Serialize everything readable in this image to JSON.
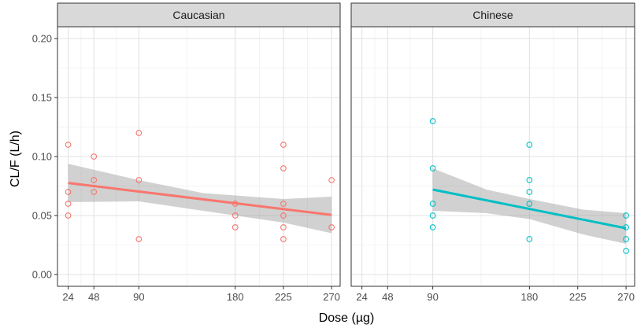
{
  "chart_data": {
    "type": "scatter",
    "xlabel": "Dose (µg)",
    "ylabel": "CL/F (L/h)",
    "x_ticks": [
      24,
      48,
      90,
      180,
      225,
      270
    ],
    "y_ticks": [
      0.0,
      0.05,
      0.1,
      0.15,
      0.2
    ],
    "y_tick_labels": [
      "0.00",
      "0.05",
      "0.10",
      "0.15",
      "0.20"
    ],
    "ylim": [
      -0.01,
      0.21
    ],
    "xlim": [
      14,
      278
    ],
    "panels": [
      {
        "title": "Caucasian",
        "color": "#F8766D",
        "points": [
          {
            "x": 24,
            "y": 0.11
          },
          {
            "x": 24,
            "y": 0.07
          },
          {
            "x": 24,
            "y": 0.06
          },
          {
            "x": 24,
            "y": 0.05
          },
          {
            "x": 48,
            "y": 0.1
          },
          {
            "x": 48,
            "y": 0.08
          },
          {
            "x": 48,
            "y": 0.07
          },
          {
            "x": 90,
            "y": 0.12
          },
          {
            "x": 90,
            "y": 0.08
          },
          {
            "x": 90,
            "y": 0.03
          },
          {
            "x": 180,
            "y": 0.06
          },
          {
            "x": 180,
            "y": 0.05
          },
          {
            "x": 180,
            "y": 0.04
          },
          {
            "x": 225,
            "y": 0.11
          },
          {
            "x": 225,
            "y": 0.09
          },
          {
            "x": 225,
            "y": 0.06
          },
          {
            "x": 225,
            "y": 0.05
          },
          {
            "x": 225,
            "y": 0.04
          },
          {
            "x": 225,
            "y": 0.03
          },
          {
            "x": 270,
            "y": 0.08
          },
          {
            "x": 270,
            "y": 0.04
          }
        ],
        "fit": {
          "x": [
            24,
            270
          ],
          "y": [
            0.0776,
            0.0505
          ]
        },
        "ci_upper": [
          {
            "x": 24,
            "y": 0.0938
          },
          {
            "x": 90,
            "y": 0.08
          },
          {
            "x": 150,
            "y": 0.069
          },
          {
            "x": 225,
            "y": 0.064
          },
          {
            "x": 270,
            "y": 0.066
          }
        ],
        "ci_lower": [
          {
            "x": 24,
            "y": 0.0614
          },
          {
            "x": 90,
            "y": 0.062
          },
          {
            "x": 150,
            "y": 0.054
          },
          {
            "x": 225,
            "y": 0.044
          },
          {
            "x": 270,
            "y": 0.035
          }
        ]
      },
      {
        "title": "Chinese",
        "color": "#00BFC4",
        "points": [
          {
            "x": 90,
            "y": 0.13
          },
          {
            "x": 90,
            "y": 0.09
          },
          {
            "x": 90,
            "y": 0.06
          },
          {
            "x": 90,
            "y": 0.05
          },
          {
            "x": 90,
            "y": 0.04
          },
          {
            "x": 180,
            "y": 0.11
          },
          {
            "x": 180,
            "y": 0.08
          },
          {
            "x": 180,
            "y": 0.07
          },
          {
            "x": 180,
            "y": 0.06
          },
          {
            "x": 180,
            "y": 0.03
          },
          {
            "x": 270,
            "y": 0.05
          },
          {
            "x": 270,
            "y": 0.04
          },
          {
            "x": 270,
            "y": 0.03
          },
          {
            "x": 270,
            "y": 0.02
          }
        ],
        "fit": {
          "x": [
            90,
            270
          ],
          "y": [
            0.072,
            0.0392
          ]
        },
        "ci_upper": [
          {
            "x": 90,
            "y": 0.09
          },
          {
            "x": 140,
            "y": 0.072
          },
          {
            "x": 180,
            "y": 0.064
          },
          {
            "x": 230,
            "y": 0.055
          },
          {
            "x": 270,
            "y": 0.052
          }
        ],
        "ci_lower": [
          {
            "x": 90,
            "y": 0.054
          },
          {
            "x": 140,
            "y": 0.052
          },
          {
            "x": 180,
            "y": 0.047
          },
          {
            "x": 230,
            "y": 0.034
          },
          {
            "x": 270,
            "y": 0.026
          }
        ]
      }
    ]
  }
}
